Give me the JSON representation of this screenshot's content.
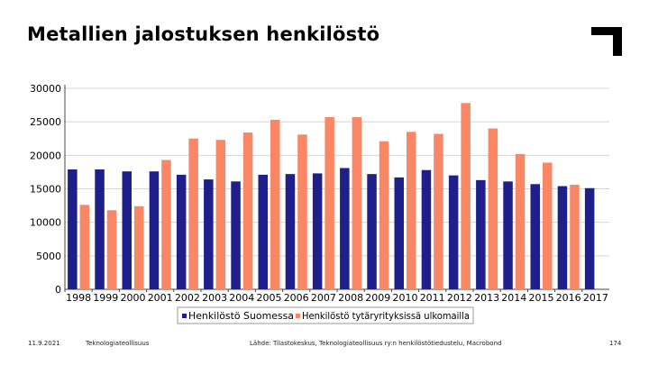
{
  "slide": {
    "title": "Metallien jalostuksen henkilöstö",
    "footer_date": "11.9.2021",
    "footer_org": "Teknologiateollisuus",
    "footer_source": "Lähde: Tilastokeskus, Teknologiateollisuus ry:n henkilöstötiedustelu, Macrobond",
    "page_number": "174"
  },
  "chart_data": {
    "type": "bar",
    "title": "",
    "xlabel": "",
    "ylabel": "",
    "ylim": [
      0,
      30000
    ],
    "yticks": [
      0,
      5000,
      10000,
      15000,
      20000,
      25000,
      30000
    ],
    "grid": true,
    "legend_position": "bottom",
    "categories": [
      "1998",
      "1999",
      "2000",
      "2001",
      "2002",
      "2003",
      "2004",
      "2005",
      "2006",
      "2007",
      "2008",
      "2009",
      "2010",
      "2011",
      "2012",
      "2013",
      "2014",
      "2015",
      "2016",
      "2017"
    ],
    "series": [
      {
        "name": "Henkilöstö Suomessa",
        "color": "#1f1f8c",
        "values": [
          17900,
          17900,
          17600,
          17600,
          17100,
          16400,
          16100,
          17100,
          17200,
          17300,
          18100,
          17200,
          16700,
          17800,
          17000,
          16300,
          16100,
          15700,
          15400,
          15100
        ]
      },
      {
        "name": "Henkilöstö tytäryrityksissä ulkomailla",
        "color": "#f98766",
        "values": [
          12600,
          11800,
          12400,
          19300,
          22500,
          22300,
          23400,
          25300,
          23100,
          25700,
          25700,
          22100,
          23500,
          23200,
          27800,
          24000,
          20200,
          18900,
          15600,
          null
        ]
      }
    ]
  }
}
